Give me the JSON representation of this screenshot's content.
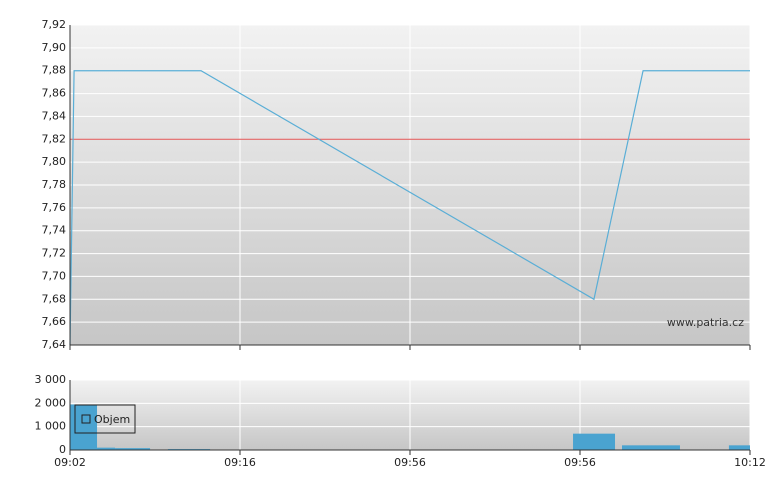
{
  "chart_data": [
    {
      "type": "line",
      "color": "#5aaed6",
      "x": [
        0,
        0.024,
        0.771,
        3.082,
        3.371,
        4
      ],
      "values": [
        7.64,
        7.88,
        7.88,
        7.68,
        7.88,
        7.88
      ],
      "reference_line": {
        "value": 7.82,
        "color": "#e05050"
      },
      "xlim": [
        0,
        4
      ],
      "ylim": [
        7.64,
        7.92
      ],
      "yticks": [
        {
          "value": 7.64,
          "label": "7,64"
        },
        {
          "value": 7.66,
          "label": "7,66"
        },
        {
          "value": 7.68,
          "label": "7,68"
        },
        {
          "value": 7.7,
          "label": "7,70"
        },
        {
          "value": 7.72,
          "label": "7,72"
        },
        {
          "value": 7.74,
          "label": "7,74"
        },
        {
          "value": 7.76,
          "label": "7,76"
        },
        {
          "value": 7.78,
          "label": "7,78"
        },
        {
          "value": 7.8,
          "label": "7,80"
        },
        {
          "value": 7.82,
          "label": "7,82"
        },
        {
          "value": 7.84,
          "label": "7,84"
        },
        {
          "value": 7.86,
          "label": "7,86"
        },
        {
          "value": 7.88,
          "label": "7,88"
        },
        {
          "value": 7.9,
          "label": "7,90"
        },
        {
          "value": 7.92,
          "label": "7,92"
        }
      ],
      "watermark": "www.patria.cz",
      "grid": true
    },
    {
      "type": "bar",
      "series": [
        {
          "name": "Objem",
          "color": "#4aa3d0",
          "x": [
            0,
            0.159,
            0.265,
            0.576,
            2.959,
            3.247,
            3.876
          ],
          "x_end": [
            0.159,
            0.265,
            0.471,
            0.824,
            3.206,
            3.588,
            4
          ],
          "values": [
            1950,
            100,
            80,
            40,
            700,
            200,
            200
          ]
        }
      ],
      "xlim": [
        0,
        4
      ],
      "ylim": [
        0,
        3000
      ],
      "xticks": [
        {
          "value": 0,
          "label": "09:02"
        },
        {
          "value": 1,
          "label": "09:16"
        },
        {
          "value": 2,
          "label": "09:56"
        },
        {
          "value": 3,
          "label": "09:56"
        },
        {
          "value": 4,
          "label": "10:12"
        }
      ],
      "yticks": [
        0,
        {
          "value": 1000,
          "label": "1 000"
        },
        {
          "value": 2000,
          "label": "2 000"
        },
        {
          "value": 3000,
          "label": "3 000"
        }
      ],
      "grid": true
    }
  ]
}
